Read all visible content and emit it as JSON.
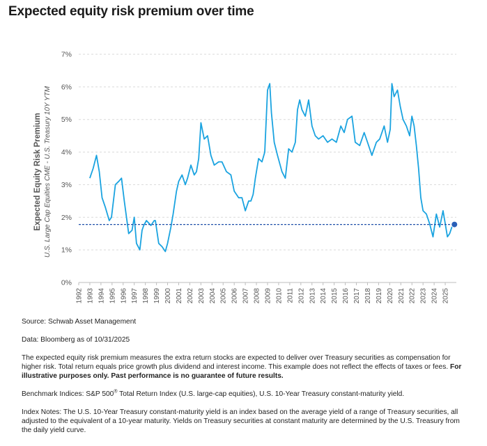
{
  "page_title": "Expected equity risk premium over time",
  "colors": {
    "line": "#1aa3e0",
    "reference": "#1f4fa8",
    "marker": "#2a5fb7",
    "grid": "#d9d9d9"
  },
  "chart_data": {
    "type": "line",
    "title": "Expected equity risk premium over time",
    "ylabel": "Expected Equity Risk Premium",
    "ylabel_sub": "U.S. Large Cap Equities CME - U.S. Treasury 10Y YTM",
    "xlabel": "",
    "ylim": [
      0,
      7
    ],
    "yticks": [
      "0%",
      "1%",
      "2%",
      "3%",
      "4%",
      "5%",
      "6%",
      "7%"
    ],
    "xlim": [
      1992,
      2026
    ],
    "xticks": [
      "1992",
      "1993",
      "1994",
      "1995",
      "1996",
      "1997",
      "1998",
      "1999",
      "2000",
      "2001",
      "2002",
      "2003",
      "2004",
      "2005",
      "2006",
      "2007",
      "2008",
      "2009",
      "2010",
      "2011",
      "2012",
      "2013",
      "2014",
      "2015",
      "2016",
      "2017",
      "2018",
      "2019",
      "2020",
      "2021",
      "2022",
      "2023",
      "2024",
      "2025"
    ],
    "grid": true,
    "reference_line": {
      "y": 1.78,
      "style": "dashed"
    },
    "end_marker": {
      "x": 2025.83,
      "y": 1.78
    },
    "series": [
      {
        "x": [
          1993.0,
          1993.3,
          1993.6,
          1993.85,
          1994.1,
          1994.4,
          1994.75,
          1994.95,
          1995.3,
          1995.6,
          1995.85,
          1996.1,
          1996.5,
          1996.8,
          1997.0,
          1997.2,
          1997.5,
          1997.7,
          1997.85,
          1998.1,
          1998.5,
          1998.8,
          1998.9,
          1999.2,
          1999.5,
          1999.8,
          2000.0,
          2000.3,
          2000.5,
          2000.8,
          2001.0,
          2001.3,
          2001.6,
          2001.8,
          2002.1,
          2002.4,
          2002.6,
          2002.8,
          2003.0,
          2003.3,
          2003.6,
          2003.9,
          2004.2,
          2004.6,
          2004.9,
          2005.3,
          2005.7,
          2006.0,
          2006.4,
          2006.7,
          2007.0,
          2007.3,
          2007.5,
          2007.7,
          2007.9,
          2008.2,
          2008.5,
          2008.75,
          2009.0,
          2009.2,
          2009.35,
          2009.6,
          2009.9,
          2010.3,
          2010.6,
          2010.9,
          2011.2,
          2011.5,
          2011.7,
          2011.9,
          2012.1,
          2012.4,
          2012.7,
          2013.0,
          2013.3,
          2013.6,
          2014.0,
          2014.4,
          2014.8,
          2015.2,
          2015.6,
          2015.9,
          2016.2,
          2016.6,
          2016.9,
          2017.3,
          2017.7,
          2018.0,
          2018.4,
          2018.8,
          2019.1,
          2019.5,
          2019.8,
          2020.05,
          2020.2,
          2020.4,
          2020.7,
          2020.95,
          2021.2,
          2021.5,
          2021.8,
          2022.0,
          2022.2,
          2022.4,
          2022.6,
          2022.8,
          2023.0,
          2023.3,
          2023.6,
          2023.9,
          2024.2,
          2024.5,
          2024.8,
          2025.0,
          2025.2,
          2025.4,
          2025.6,
          2025.83
        ],
        "values": [
          3.2,
          3.5,
          3.9,
          3.4,
          2.6,
          2.3,
          1.9,
          2.0,
          3.0,
          3.1,
          3.2,
          2.5,
          1.5,
          1.6,
          2.0,
          1.2,
          1.0,
          1.6,
          1.75,
          1.9,
          1.75,
          1.9,
          1.9,
          1.2,
          1.1,
          0.95,
          1.2,
          1.7,
          2.1,
          2.8,
          3.1,
          3.3,
          3.0,
          3.2,
          3.6,
          3.3,
          3.4,
          3.8,
          4.9,
          4.4,
          4.5,
          3.9,
          3.6,
          3.7,
          3.7,
          3.4,
          3.3,
          2.8,
          2.6,
          2.6,
          2.2,
          2.5,
          2.5,
          2.7,
          3.2,
          3.8,
          3.7,
          4.0,
          5.9,
          6.1,
          5.2,
          4.3,
          3.9,
          3.4,
          3.2,
          4.1,
          4.0,
          4.3,
          5.3,
          5.6,
          5.3,
          5.1,
          5.6,
          4.8,
          4.5,
          4.4,
          4.5,
          4.3,
          4.4,
          4.3,
          4.8,
          4.6,
          5.0,
          5.1,
          4.3,
          4.2,
          4.6,
          4.3,
          3.9,
          4.3,
          4.4,
          4.8,
          4.3,
          4.7,
          6.1,
          5.7,
          5.9,
          5.4,
          5.0,
          4.8,
          4.5,
          5.1,
          4.8,
          4.2,
          3.5,
          2.6,
          2.2,
          2.1,
          1.8,
          1.4,
          2.1,
          1.7,
          2.2,
          1.8,
          1.4,
          1.5,
          1.7,
          1.78
        ]
      }
    ]
  },
  "notes": {
    "source": "Source: Schwab Asset Management",
    "data": "Data: Bloomberg as of 10/31/2025",
    "para1_text": "The expected equity risk premium measures the extra return stocks are expected to deliver over Treasury securities as compensation for higher risk. Total return equals price growth plus dividend and interest income. This example does not reflect the effects of taxes or fees. ",
    "para1_bold": "For illustrative purposes only. Past performance is no guarantee of future results.",
    "benchmark_prefix": "Benchmark Indices: S&P 500",
    "benchmark_sup": "®",
    "benchmark_suffix": " Total Return Index (U.S. large-cap equities), U.S. 10-Year Treasury constant-maturity yield.",
    "index_notes": "Index Notes: The U.S. 10-Year Treasury constant-maturity yield is an index based on the average yield of a range of Treasury securities, all adjusted to the equivalent of a 10-year maturity. Yields on Treasury securities at constant maturity are determined by the U.S. Treasury from the daily yield curve."
  }
}
